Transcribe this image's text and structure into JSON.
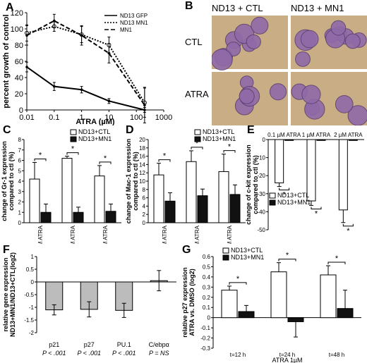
{
  "panels": {
    "A": "A",
    "B": "B",
    "C": "C",
    "D": "D",
    "E": "E",
    "F": "F",
    "G": "G"
  },
  "colors": {
    "white_bar": "#ffffff",
    "black_bar": "#111111",
    "gray_bar": "#bcbcbc",
    "cell_bg": "#c9ad85",
    "cell": "#8f6aa8"
  },
  "micrograph": {
    "col_labels": [
      "ND13 + CTL",
      "ND13 + MN1"
    ],
    "row_labels": [
      "CTL",
      "ATRA"
    ]
  },
  "chart_data": [
    {
      "id": "A",
      "type": "line",
      "xlabel": "ATRA (µM)",
      "ylabel": "percent growth of control",
      "xscale": "log",
      "xlim": [
        0.01,
        1000
      ],
      "ylim": [
        0,
        120
      ],
      "xticks": [
        "0.01",
        "0.1",
        "1",
        "10",
        "100",
        "1000"
      ],
      "yticks": [
        "0",
        "20",
        "40",
        "60",
        "80",
        "100",
        "120"
      ],
      "x": [
        0.01,
        0.1,
        1,
        10,
        200
      ],
      "series": [
        {
          "name": "ND13 GFP",
          "style": "solid",
          "values": [
            53,
            29,
            25,
            11,
            0
          ],
          "err": [
            6,
            5,
            4,
            3,
            3
          ]
        },
        {
          "name": "ND13 MN1",
          "style": "dotted",
          "values": [
            95,
            103,
            93,
            80,
            9
          ],
          "err": [
            10,
            6,
            10,
            10,
            18
          ]
        },
        {
          "name": "MN1",
          "style": "dashed",
          "values": [
            92,
            110,
            92,
            70,
            6
          ],
          "err": [
            12,
            8,
            12,
            12,
            22
          ]
        }
      ]
    },
    {
      "id": "C",
      "type": "bar",
      "ylabel": "change of Gr-1 expression compared to ctl (%)",
      "ylim": [
        0,
        8
      ],
      "yticks": [
        "0",
        "1",
        "2",
        "3",
        "4",
        "5",
        "6",
        "7",
        "8"
      ],
      "categories": [
        "0.1µM ATRA",
        "1 µM ATRA",
        "2 µM ATRA"
      ],
      "series": [
        {
          "name": "ND13+CTL",
          "values": [
            4.2,
            6.2,
            4.5
          ],
          "err": [
            1.6,
            0.2,
            1.0
          ]
        },
        {
          "name": "ND13+MN1",
          "values": [
            1.0,
            1.0,
            1.1
          ],
          "err": [
            0.8,
            0.5,
            0.7
          ]
        }
      ],
      "stars": [
        "*",
        "*",
        "*"
      ]
    },
    {
      "id": "D",
      "type": "bar",
      "ylabel": "change of Mac-1 expression compared to ctl (%)",
      "ylim": [
        0,
        20
      ],
      "yticks": [
        "0",
        "2",
        "4",
        "6",
        "8",
        "10",
        "12",
        "14",
        "16",
        "18",
        "20"
      ],
      "categories": [
        "0.1 µM ATRA",
        "1 µM ATRA",
        "2 µM ATRA"
      ],
      "series": [
        {
          "name": "ND13+CTL",
          "values": [
            11.5,
            14.7,
            12.3
          ],
          "err": [
            2.8,
            2.6,
            4.2
          ]
        },
        {
          "name": "ND13+MN1",
          "values": [
            5.2,
            6.5,
            6.8
          ],
          "err": [
            2.0,
            1.6,
            2.3
          ]
        }
      ],
      "stars": [
        "*",
        "*",
        "*"
      ]
    },
    {
      "id": "E",
      "type": "bar",
      "ylabel": "change of c-kit expression compared to ctl (%)",
      "ylim": [
        -50,
        0
      ],
      "yticks": [
        "0",
        "-10",
        "-20",
        "-30",
        "-40",
        "-50"
      ],
      "categories": [
        "0.1 µM ATRA",
        "1 µM ATRA",
        "2 µM ATRA"
      ],
      "series": [
        {
          "name": "ND13+CTL",
          "values": [
            -24,
            -34,
            -39
          ],
          "err": [
            2,
            2.5,
            7
          ]
        },
        {
          "name": "ND13+MN1",
          "values": [
            -0.5,
            -0.5,
            -0.5
          ],
          "err": [
            0,
            0,
            0
          ]
        }
      ],
      "stars": [
        "*",
        "*",
        "*"
      ]
    },
    {
      "id": "F",
      "type": "bar",
      "ylabel": "relative gene expression ND13+MN1/ND13+CTL(log2)",
      "ylim": [
        -2,
        1
      ],
      "yticks": [
        "1",
        "0.5",
        "0",
        "-0.5",
        "-1",
        "-1.5",
        "-2"
      ],
      "categories": [
        "p21",
        "p27",
        "PU.1",
        "C/ebpα"
      ],
      "pvalues": [
        "P < .001",
        "P < .001",
        "P < .001",
        "P = NS"
      ],
      "values": [
        -1.1,
        -1.08,
        -1.12,
        0.05
      ],
      "err": [
        0.2,
        0.3,
        0.28,
        0.4
      ]
    },
    {
      "id": "G",
      "type": "bar",
      "ylabel": "relative p27 expression ATRA vs. DMSO (log2)",
      "xlabel": "ATRA 1µM",
      "ylim": [
        -0.3,
        0.6
      ],
      "yticks": [
        "0.6",
        "0.5",
        "0.4",
        "0.3",
        "0.2",
        "0.1",
        "0",
        "-0.1",
        "-0.2",
        "-0.3"
      ],
      "categories": [
        "t=12 h",
        "t=24 h",
        "t=48 h"
      ],
      "series": [
        {
          "name": "ND13+CTL",
          "values": [
            0.27,
            0.45,
            0.42
          ],
          "err": [
            0.04,
            0.09,
            0.09
          ]
        },
        {
          "name": "ND13+MN1",
          "values": [
            0.06,
            -0.04,
            0.09
          ],
          "err": [
            0.06,
            0.15,
            0.18
          ]
        }
      ],
      "stars": [
        "*",
        "*",
        "*"
      ]
    }
  ]
}
